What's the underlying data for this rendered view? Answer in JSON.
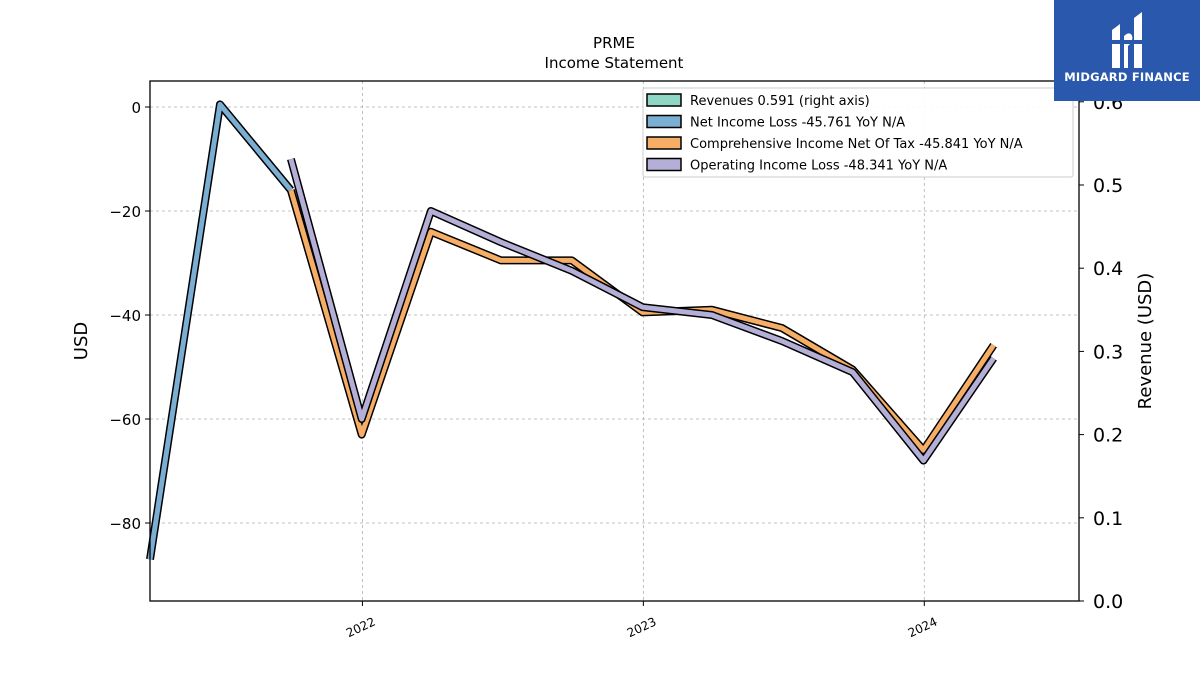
{
  "chart_data": {
    "type": "line",
    "title": "PRME",
    "subtitle": "Income Statement",
    "ylabel": "USD",
    "ylabel_right": "Revenue (USD)",
    "ylim": [
      -95,
      5
    ],
    "ylim_right": [
      0,
      0.625
    ],
    "y_ticks": [
      0,
      -20,
      -40,
      -60,
      -80
    ],
    "y_ticks_right": [
      0.0,
      0.1,
      0.2,
      0.3,
      0.4,
      0.5,
      0.6
    ],
    "x_range": [
      "2021-03-31",
      "2024-07-20"
    ],
    "x_ticks": [
      {
        "label": "2022",
        "date": "2022-01-01"
      },
      {
        "label": "2023",
        "date": "2023-01-01"
      },
      {
        "label": "2024",
        "date": "2024-01-01"
      }
    ],
    "grid": true,
    "legend_position": "top-right",
    "series": [
      {
        "name": "Revenues",
        "legend_label": "Revenues  0.591 (right axis)",
        "color": "#8fd6c4",
        "axis": "right",
        "points": []
      },
      {
        "name": "Net Income Loss",
        "legend_label": "Net Income Loss  -45.761 YoY N/A",
        "color": "#7aaed2",
        "axis": "left",
        "points": [
          [
            "2021-03-31",
            -87.0
          ],
          [
            "2021-06-30",
            0.5
          ],
          [
            "2021-09-30",
            -16.0
          ]
        ]
      },
      {
        "name": "Comprehensive Income Net Of Tax",
        "legend_label": "Comprehensive Income Net Of Tax  -45.841 YoY N/A",
        "color": "#f6ad66",
        "axis": "left",
        "points": [
          [
            "2021-09-30",
            -16.0
          ],
          [
            "2021-12-31",
            -63.0
          ],
          [
            "2022-03-31",
            -24.0
          ],
          [
            "2022-06-30",
            -29.5
          ],
          [
            "2022-09-30",
            -29.5
          ],
          [
            "2022-12-31",
            -39.5
          ],
          [
            "2023-03-31",
            -39.0
          ],
          [
            "2023-06-30",
            -42.5
          ],
          [
            "2023-09-30",
            -50.5
          ],
          [
            "2023-12-31",
            -66.0
          ],
          [
            "2024-03-31",
            -45.8
          ]
        ]
      },
      {
        "name": "Operating Income Loss",
        "legend_label": "Operating Income Loss  -48.341 YoY N/A",
        "color": "#b4afd6",
        "axis": "left",
        "points": [
          [
            "2021-09-30",
            -10.0
          ],
          [
            "2021-12-31",
            -60.0
          ],
          [
            "2022-03-31",
            -20.0
          ],
          [
            "2022-06-30",
            -26.0
          ],
          [
            "2022-09-30",
            -31.5
          ],
          [
            "2022-12-31",
            -38.5
          ],
          [
            "2023-03-31",
            -40.0
          ],
          [
            "2023-06-30",
            -45.0
          ],
          [
            "2023-09-30",
            -51.0
          ],
          [
            "2023-12-31",
            -68.0
          ],
          [
            "2024-03-31",
            -48.3
          ]
        ]
      }
    ]
  },
  "logo": {
    "text": "MIDGARD FINANCE",
    "icon": "midgard-finance-logo-icon",
    "background": "#2a58ad"
  }
}
